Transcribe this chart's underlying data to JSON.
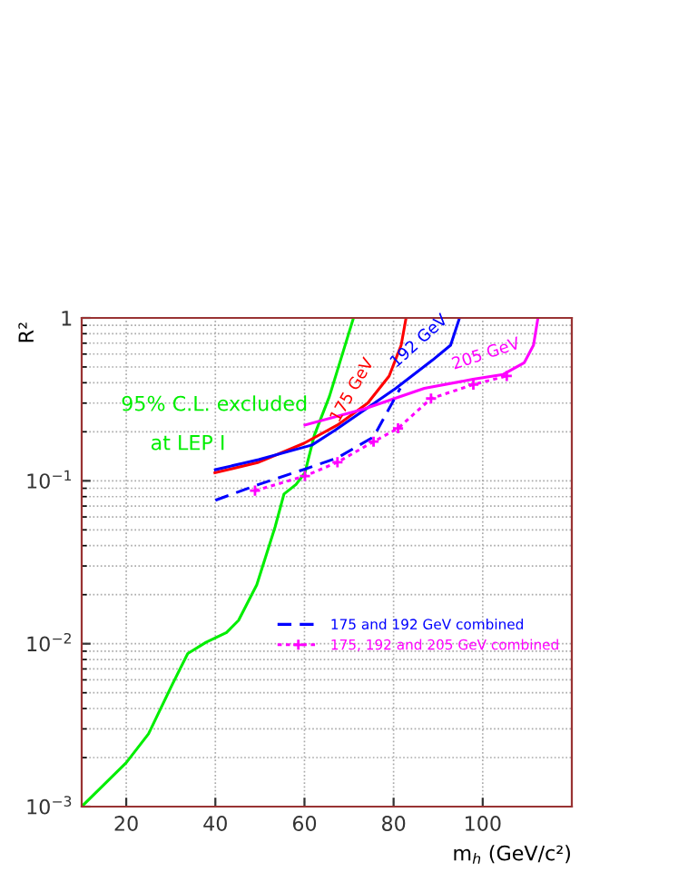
{
  "chart_data": {
    "type": "line",
    "xlabel": "m$_{h}$ (GeV/c²)",
    "ylabel": "R²",
    "log": "y",
    "xlim": [
      10,
      120
    ],
    "xticks": [
      20,
      40,
      60,
      80,
      100
    ],
    "ylim": [
      0.001,
      1
    ],
    "yticks": [
      {
        "value": 0.001,
        "label": "10$^{−3}$"
      },
      {
        "value": 0.01,
        "label": "10$^{−2}$"
      },
      {
        "value": 0.1,
        "label": "10$^{−1}$"
      },
      1
    ],
    "grid": true,
    "legend": "right",
    "series": [
      {
        "color": "#00ee00",
        "line_style": "solid",
        "x": [
          10,
          20,
          25,
          30.3,
          33.8,
          37.9,
          42.5,
          45.2,
          49.3,
          53.4,
          55.4,
          58.1,
          60.1,
          62.2,
          65.6,
          71
        ],
        "values": [
          0.001,
          0.00186,
          0.0028,
          0.0056,
          0.0087,
          0.0102,
          0.0117,
          0.0139,
          0.023,
          0.052,
          0.083,
          0.095,
          0.112,
          0.19,
          0.33,
          1.0
        ]
      },
      {
        "color": "#ff0000",
        "line_style": "solid",
        "x": [
          39.9,
          49.7,
          59.9,
          67.4,
          74.2,
          79,
          81.7,
          82.8
        ],
        "values": [
          0.112,
          0.13,
          0.17,
          0.22,
          0.3,
          0.44,
          0.68,
          1.0
        ]
      },
      {
        "color": "#0000ff",
        "line_style": "solid",
        "x": [
          40,
          49.7,
          61.7,
          66.9,
          73.7,
          80.5,
          88.7,
          92.8,
          94.8
        ],
        "values": [
          0.117,
          0.135,
          0.166,
          0.205,
          0.275,
          0.37,
          0.55,
          0.68,
          1.0
        ]
      },
      {
        "color": "#ff00ff",
        "line_style": "solid",
        "x": [
          60.1,
          73.2,
          86.9,
          97.8,
          104.6,
          109.3,
          111.4,
          112.4
        ],
        "values": [
          0.22,
          0.275,
          0.37,
          0.42,
          0.45,
          0.53,
          0.68,
          1.0
        ]
      },
      {
        "name": "175 and 192 GeV combined",
        "color": "#0000ff",
        "line_style": "dashed",
        "x": [
          40,
          49.7,
          60.1,
          67.3,
          75.5,
          81.5
        ],
        "values": [
          0.076,
          0.095,
          0.118,
          0.138,
          0.186,
          0.37
        ]
      },
      {
        "name": "175, 192 and 205 GeV combined",
        "color": "#ff00ff",
        "line_style": "dotted",
        "marker": "cross",
        "x": [
          48.9,
          60.1,
          67.4,
          75.5,
          81,
          88.4,
          97.9,
          105.4
        ],
        "values": [
          0.087,
          0.107,
          0.13,
          0.174,
          0.21,
          0.32,
          0.39,
          0.44
        ]
      }
    ],
    "annotations": [
      "95% C.L. excluded",
      "at LEP I",
      {
        "text": "175 GeV",
        "x": 73,
        "y": 0.3
      },
      {
        "text": "192 GeV",
        "x": 88,
        "y": 0.6
      },
      {
        "text": "205 GeV",
        "x": 103,
        "y": 0.5
      }
    ]
  }
}
